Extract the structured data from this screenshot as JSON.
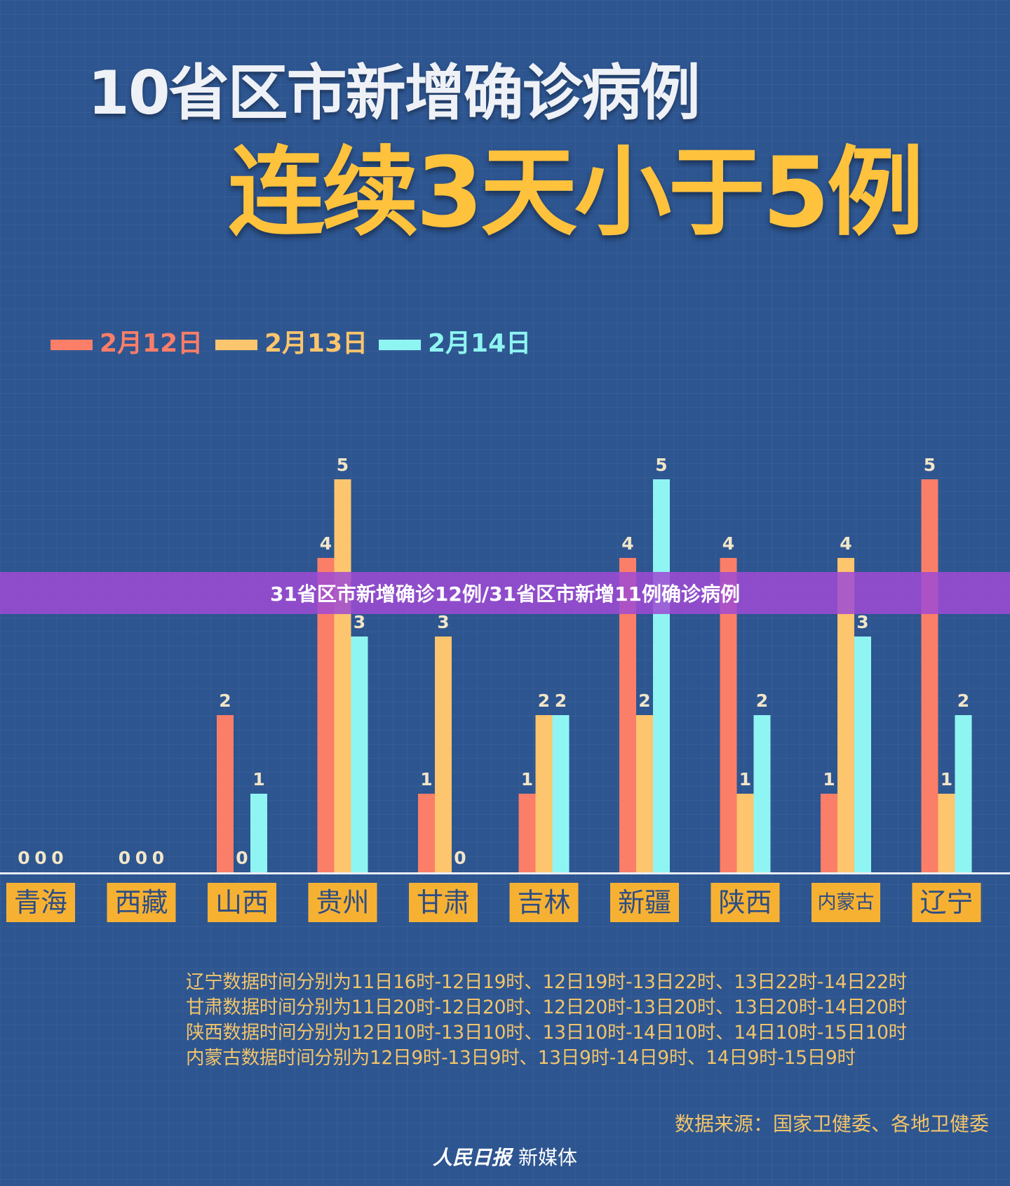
{
  "title_line1": "10省区市新增确诊病例",
  "title_line2": "连续3天小于5例",
  "colors": {
    "series": [
      "#fb7e68",
      "#fdc56d",
      "#8ff5f2"
    ],
    "label_box": "#f6b133",
    "label_text": "#2d4d84",
    "value_text": "#f2e6c8",
    "baseline": "#ffffff"
  },
  "chart_data": {
    "type": "bar",
    "categories": [
      "青海",
      "西藏",
      "山西",
      "贵州",
      "甘肃",
      "吉林",
      "新疆",
      "陕西",
      "内蒙古",
      "辽宁"
    ],
    "series": [
      {
        "name": "2月12日",
        "values": [
          0,
          0,
          2,
          4,
          1,
          1,
          4,
          4,
          1,
          5
        ]
      },
      {
        "name": "2月13日",
        "values": [
          0,
          0,
          0,
          5,
          3,
          2,
          2,
          1,
          4,
          1
        ]
      },
      {
        "name": "2月14日",
        "values": [
          0,
          0,
          1,
          3,
          0,
          2,
          5,
          2,
          3,
          2
        ]
      }
    ],
    "ylim": [
      0,
      5
    ],
    "legend_position": "top-left",
    "grid": false
  },
  "banner": "31省区市新增确诊12例/31省区市新增11例确诊病例",
  "notes": [
    "辽宁数据时间分别为11日16时-12日19时、12日19时-13日22时、13日22时-14日22时",
    "甘肃数据时间分别为11日20时-12日20时、12日20时-13日20时、13日20时-14日20时",
    "陕西数据时间分别为12日10时-13日10时、13日10时-14日10时、14日10时-15日10时",
    "内蒙古数据时间分别为12日9时-13日9时、13日9时-14日9时、14日9时-15日9时"
  ],
  "source": "数据来源：国家卫健委、各地卫健委",
  "footer": {
    "logo": "人民日报",
    "text": "新媒体"
  }
}
